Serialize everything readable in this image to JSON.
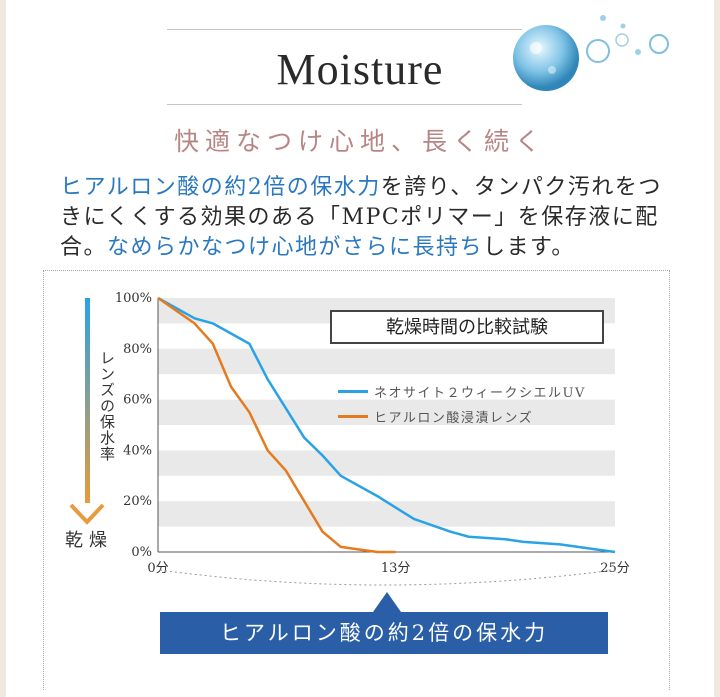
{
  "header": {
    "title": "Moisture",
    "subtitle": "快適なつけ心地、長く続く"
  },
  "description": {
    "part1_highlight": "ヒアルロン酸の約2倍の保水力",
    "part1_rest": "を誇り、タンパク汚れをつきにくくする効果のある「MPCポリマー」を保存液に配合。",
    "part2_highlight": "なめらかなつけ心地がさらに長持ち",
    "part2_rest": "します。"
  },
  "side_labels": {
    "y_axis": "レンズの保水率",
    "dry": "乾燥"
  },
  "banner": {
    "text": "ヒアルロン酸の約2倍の保水力"
  },
  "colors": {
    "series_blue": "#29a3e6",
    "series_orange": "#e67a1e",
    "highlight_text": "#2a78c0",
    "banner_bg": "#2a5fa8",
    "subtitle": "#b88585"
  },
  "icons": {
    "bubbles": "water-drop-bubbles-icon",
    "arrow": "gradient-down-arrow-icon"
  },
  "chart_data": {
    "type": "line",
    "title": "乾燥時間の比較試験",
    "xlabel": "",
    "ylabel": "レンズの保水率",
    "x_tick_labels": [
      "0分",
      "13分",
      "25分"
    ],
    "y_tick_labels": [
      "100%",
      "80%",
      "60%",
      "40%",
      "20%",
      "0%"
    ],
    "xlim": [
      0,
      25
    ],
    "ylim": [
      0,
      100
    ],
    "grid": "horizontal bands",
    "legend_position": "top-right",
    "series": [
      {
        "name": "ネオサイト２ウィークシエルUV",
        "color": "#29a3e6",
        "x": [
          0,
          2,
          3,
          5,
          6,
          8,
          9,
          10,
          12,
          14,
          16,
          17,
          19,
          20,
          22,
          24,
          25
        ],
        "y": [
          100,
          92,
          90,
          82,
          68,
          45,
          38,
          30,
          22,
          13,
          8,
          6,
          5,
          4,
          3,
          1,
          0
        ]
      },
      {
        "name": "ヒアルロン酸浸漬レンズ",
        "color": "#e67a1e",
        "x": [
          0,
          2,
          3,
          4,
          5,
          6,
          7,
          8,
          9,
          10,
          11,
          12,
          13
        ],
        "y": [
          100,
          90,
          82,
          65,
          55,
          40,
          32,
          20,
          8,
          2,
          1,
          0,
          0
        ]
      }
    ]
  }
}
